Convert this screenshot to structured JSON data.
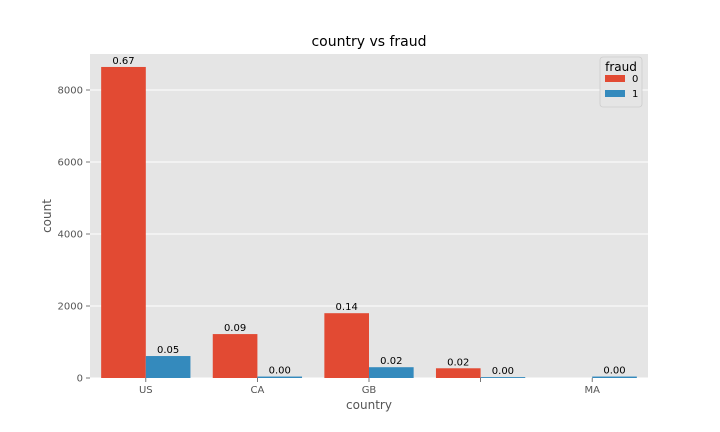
{
  "colors": {
    "plot_bg": "#e5e5e5",
    "grid": "#ffffff",
    "series_0": "#e24a33",
    "series_1": "#348abd"
  },
  "chart_data": {
    "type": "bar",
    "title": "country vs fraud",
    "xlabel": "country",
    "ylabel": "count",
    "categories": [
      "US",
      "CA",
      "GB",
      "",
      "MA"
    ],
    "ylim": [
      0,
      9000
    ],
    "yticks": [
      0,
      2000,
      4000,
      6000,
      8000
    ],
    "grid": true,
    "legend": {
      "title": "fraud",
      "placement": "top-right"
    },
    "series": [
      {
        "name": "0",
        "color": "#e24a33",
        "values": [
          8640,
          1220,
          1800,
          270,
          0
        ],
        "labels": [
          "0.67",
          "0.09",
          "0.14",
          "0.02",
          ""
        ]
      },
      {
        "name": "1",
        "color": "#348abd",
        "values": [
          610,
          40,
          300,
          25,
          40
        ],
        "labels": [
          "0.05",
          "0.00",
          "0.02",
          "0.00",
          "0.00"
        ]
      }
    ]
  }
}
